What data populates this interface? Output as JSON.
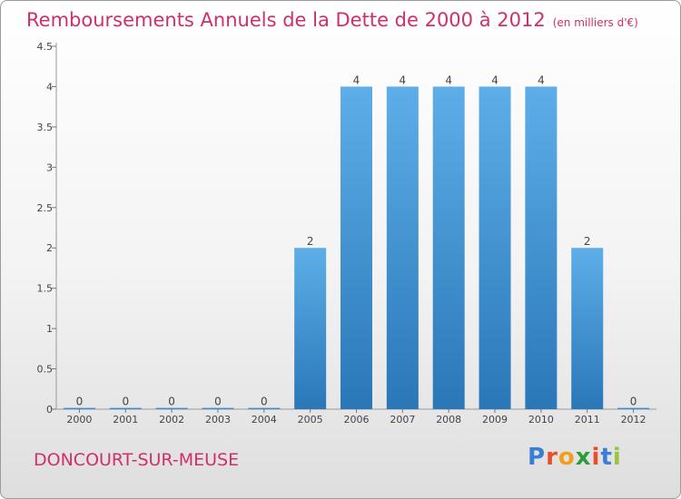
{
  "title": "Remboursements Annuels de la Dette de 2000 à 2012",
  "unit": "(en milliers d'€)",
  "commune": "DONCOURT-SUR-MEUSE",
  "logo": {
    "letters": [
      "P",
      "r",
      "o",
      "x",
      "i",
      "t",
      "i"
    ],
    "colors": [
      "#3a7fd5",
      "#e8502a",
      "#f2a01c",
      "#2f9c3c",
      "#e8502a",
      "#3a7fd5",
      "#9ac53c"
    ]
  },
  "colors": {
    "title": "#cf2f6a",
    "bar_top": "#5daee8",
    "bar_bottom": "#2a77b8"
  },
  "chart_data": {
    "type": "bar",
    "categories": [
      "2000",
      "2001",
      "2002",
      "2003",
      "2004",
      "2005",
      "2006",
      "2007",
      "2008",
      "2009",
      "2010",
      "2011",
      "2012"
    ],
    "values": [
      0,
      0,
      0,
      0,
      0,
      2,
      4,
      4,
      4,
      4,
      4,
      2,
      0
    ],
    "value_labels": [
      "0",
      "0",
      "0",
      "0",
      "0",
      "2",
      "4",
      "4",
      "4",
      "4",
      "4",
      "2",
      "0"
    ],
    "ylim": [
      0,
      4.5
    ],
    "y_ticks": [
      0,
      0.5,
      1,
      1.5,
      2,
      2.5,
      3,
      3.5,
      4,
      4.5
    ],
    "y_tick_labels": [
      "0",
      "0.5",
      "1",
      "1.5",
      "2",
      "2.5",
      "3",
      "3.5",
      "4",
      "4.5"
    ],
    "grid": false,
    "legend": "none"
  }
}
